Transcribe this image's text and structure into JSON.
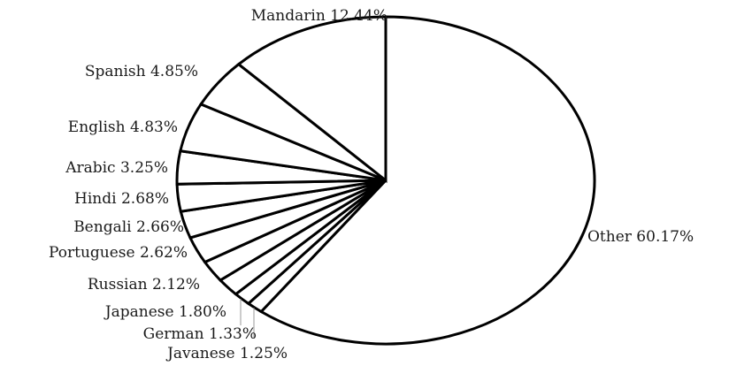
{
  "chart_data": {
    "type": "pie",
    "start": "12 o'clock",
    "direction": "clockwise",
    "legend": "none",
    "fill_color": "#ffffff",
    "stroke_color": "#000000",
    "slices": [
      {
        "name": "Other",
        "value": 60.17,
        "label": "Other 60.17%"
      },
      {
        "name": "Javanese",
        "value": 1.25,
        "label": "Javanese 1.25%"
      },
      {
        "name": "German",
        "value": 1.33,
        "label": "German 1.33%"
      },
      {
        "name": "Japanese",
        "value": 1.8,
        "label": "Japanese 1.80%"
      },
      {
        "name": "Russian",
        "value": 2.12,
        "label": "Russian 2.12%"
      },
      {
        "name": "Portuguese",
        "value": 2.62,
        "label": "Portuguese 2.62%"
      },
      {
        "name": "Bengali",
        "value": 2.66,
        "label": "Bengali 2.66%"
      },
      {
        "name": "Hindi",
        "value": 2.68,
        "label": "Hindi 2.68%"
      },
      {
        "name": "Arabic",
        "value": 3.25,
        "label": "Arabic 3.25%"
      },
      {
        "name": "English",
        "value": 4.83,
        "label": "English 4.83%"
      },
      {
        "name": "Spanish",
        "value": 4.85,
        "label": "Spanish 4.85%"
      },
      {
        "name": "Mandarin",
        "value": 12.44,
        "label": "Mandarin 12.44%"
      }
    ]
  }
}
